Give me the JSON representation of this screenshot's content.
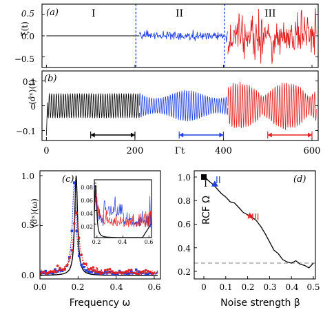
{
  "panels": {
    "a": {
      "label": "(a)",
      "ylabel": "ξ(t)",
      "yticks": [
        "0.5",
        "0.0",
        "−0.5"
      ],
      "yticks_values": [
        0.5,
        0.0,
        -0.5
      ],
      "ylim": [
        -0.75,
        0.75
      ],
      "regions": [
        "I",
        "II",
        "III"
      ]
    },
    "b": {
      "label": "(b)",
      "ylabel": "⟨σ̂ˣ⟩(t)",
      "yticks": [
        "0.1",
        "0",
        "−0.1"
      ],
      "yticks_values": [
        0.1,
        0.0,
        -0.1
      ],
      "ylim": [
        -0.14,
        0.14
      ],
      "xlabel": "Γt",
      "xticks": [
        "0",
        "200",
        "400",
        "600"
      ],
      "xticks_values": [
        0,
        200,
        400,
        600
      ],
      "xlim": [
        -10,
        620
      ],
      "window_arrows": [
        {
          "from": 100,
          "to": 200,
          "color": "#000000"
        },
        {
          "from": 300,
          "to": 400,
          "color": "#1f3fe0"
        },
        {
          "from": 500,
          "to": 600,
          "color": "#e02020"
        }
      ]
    },
    "c": {
      "label": "(c)",
      "ylabel": "⟨σ̂ˣ⟩(ω)",
      "xlabel": "Frequency ω",
      "xticks": [
        "0.0",
        "0.2",
        "0.4",
        "0.6"
      ],
      "yticks": [
        "0.0",
        "0.5",
        "1.0"
      ],
      "inset_xticks": [
        "0.2",
        "0.4",
        "0.6"
      ],
      "inset_yticks": [
        "0.02",
        "0.04",
        "0.06",
        "0.08"
      ]
    },
    "d": {
      "label": "(d)",
      "ylabel": "RCF Ω",
      "xlabel": "Noise strength β",
      "xticks": [
        "0",
        "0.1",
        "0.2",
        "0.3",
        "0.4",
        "0.5"
      ],
      "yticks": [
        "0.2",
        "0.4",
        "0.6",
        "0.8",
        "1.0"
      ],
      "markers": [
        "I",
        "II",
        "III"
      ]
    }
  },
  "colors": {
    "region_I": "#000000",
    "region_II": "#1f3fe0",
    "region_III": "#e02020",
    "reference_dashed": "#999999"
  },
  "chart_data": [
    {
      "panel": "a",
      "type": "line",
      "ylabel": "ξ(t)",
      "x_range": [
        0,
        620
      ],
      "ylim": [
        -0.75,
        0.75
      ],
      "series": [
        {
          "name": "I",
          "color": "#000000",
          "t_range": [
            0,
            210
          ],
          "amplitude": 0.0
        },
        {
          "name": "II",
          "color": "#1f3fe0",
          "t_range": [
            210,
            410
          ],
          "amplitude": 0.06
        },
        {
          "name": "III",
          "color": "#e02020",
          "t_range": [
            410,
            610
          ],
          "amplitude": 0.35
        }
      ],
      "vertical_dashed_lines_x": [
        210,
        410
      ]
    },
    {
      "panel": "b",
      "type": "line",
      "ylabel": "⟨σ̂ˣ⟩(t)",
      "xlabel": "Γt",
      "ylim": [
        -0.14,
        0.14
      ],
      "oscillation_frequency": 0.19,
      "series": [
        {
          "name": "I",
          "color": "#000000",
          "t_range": [
            0,
            210
          ],
          "envelope": 0.05
        },
        {
          "name": "II",
          "color": "#1f3fe0",
          "t_range": [
            210,
            410
          ],
          "envelope": 0.055
        },
        {
          "name": "III",
          "color": "#e02020",
          "t_range": [
            410,
            610
          ],
          "envelope": 0.07
        }
      ]
    },
    {
      "panel": "c",
      "type": "line",
      "xlabel": "Frequency ω",
      "ylabel": "⟨σ̂ˣ⟩(ω)",
      "xlim": [
        0,
        0.62
      ],
      "ylim": [
        -0.05,
        1.05
      ],
      "series": [
        {
          "name": "I",
          "color": "#000000",
          "peak_x": 0.19,
          "peak_y": 1.0,
          "width": 0.009
        },
        {
          "name": "II",
          "color": "#1f3fe0",
          "peak_x": 0.18,
          "peak_y": 0.91,
          "width": 0.012
        },
        {
          "name": "III",
          "color": "#e02020",
          "peak_x": 0.19,
          "peak_y": 0.62,
          "width": 0.018
        }
      ],
      "inset": {
        "xlim": [
          0.18,
          0.62
        ],
        "ylim": [
          0.0,
          0.085
        ]
      }
    },
    {
      "panel": "d",
      "type": "line",
      "xlabel": "Noise strength β",
      "ylabel": "RCF Ω",
      "xlim": [
        -0.02,
        0.52
      ],
      "ylim": [
        0.15,
        1.05
      ],
      "x": [
        0.0,
        0.01,
        0.02,
        0.04,
        0.06,
        0.08,
        0.1,
        0.12,
        0.14,
        0.16,
        0.18,
        0.2,
        0.22,
        0.24,
        0.26,
        0.28,
        0.3,
        0.32,
        0.34,
        0.36,
        0.38,
        0.4,
        0.42,
        0.44,
        0.46,
        0.48,
        0.5
      ],
      "y": [
        1.0,
        0.99,
        0.97,
        0.94,
        0.9,
        0.86,
        0.83,
        0.79,
        0.78,
        0.74,
        0.7,
        0.68,
        0.66,
        0.63,
        0.58,
        0.52,
        0.45,
        0.38,
        0.35,
        0.3,
        0.28,
        0.27,
        0.29,
        0.26,
        0.25,
        0.23,
        0.27
      ],
      "reference_y": 0.27,
      "highlighted_points": [
        {
          "label": "I",
          "x": 0.0,
          "y": 1.0,
          "color": "#000000",
          "shape": "square"
        },
        {
          "label": "II",
          "x": 0.05,
          "y": 0.94,
          "color": "#1f3fe0",
          "shape": "triangle"
        },
        {
          "label": "III",
          "x": 0.21,
          "y": 0.67,
          "color": "#e02020",
          "shape": "star"
        }
      ]
    }
  ]
}
